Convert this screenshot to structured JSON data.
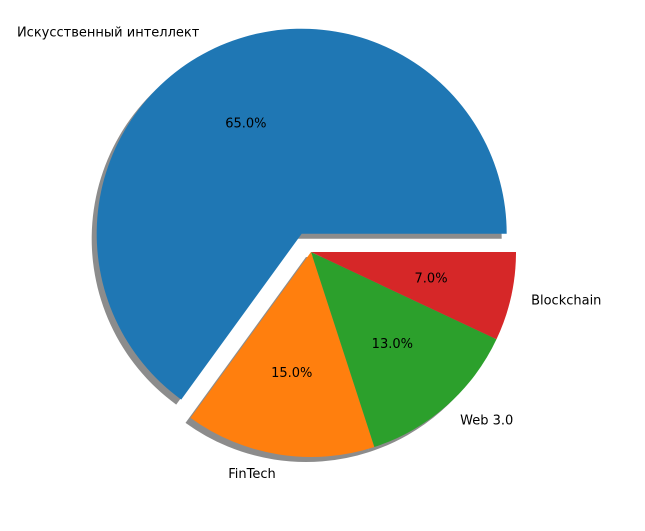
{
  "chart_data": {
    "type": "pie",
    "title": "",
    "slices": [
      {
        "label": "Искусственный интеллект",
        "value": 65.0,
        "pct_label": "65.0%",
        "color": "#1f77b4",
        "exploded": true
      },
      {
        "label": "FinTech",
        "value": 15.0,
        "pct_label": "15.0%",
        "color": "#ff7f0e",
        "exploded": false
      },
      {
        "label": "Web 3.0",
        "value": 13.0,
        "pct_label": "13.0%",
        "color": "#2ca02c",
        "exploded": false
      },
      {
        "label": "Blockchain",
        "value": 7.0,
        "pct_label": "7.0%",
        "color": "#d62728",
        "exploded": false
      }
    ],
    "start_angle_deg": 0,
    "direction": "counterclockwise",
    "shadow": true
  }
}
